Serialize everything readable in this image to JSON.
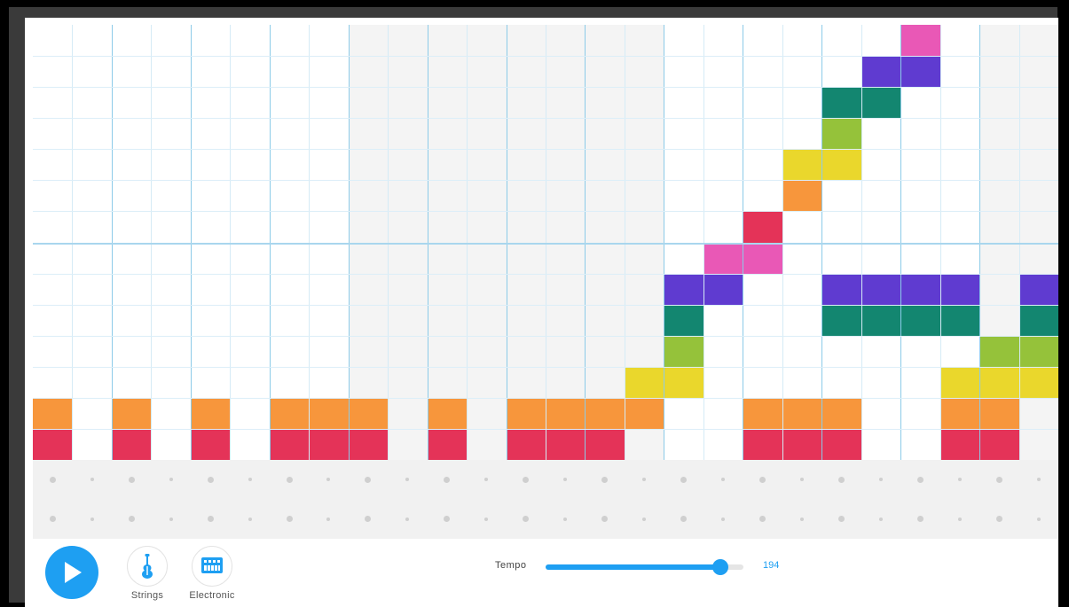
{
  "app": {
    "melody_rows": 14,
    "columns": 26,
    "percussion_rows": 2,
    "notes": [
      {
        "col": 0,
        "row": 12,
        "color": "#f7963c"
      },
      {
        "col": 0,
        "row": 13,
        "color": "#e43358"
      },
      {
        "col": 2,
        "row": 12,
        "color": "#f7963c"
      },
      {
        "col": 2,
        "row": 13,
        "color": "#e43358"
      },
      {
        "col": 4,
        "row": 12,
        "color": "#f7963c"
      },
      {
        "col": 4,
        "row": 13,
        "color": "#e43358"
      },
      {
        "col": 6,
        "row": 12,
        "color": "#f7963c"
      },
      {
        "col": 6,
        "row": 13,
        "color": "#e43358"
      },
      {
        "col": 7,
        "row": 12,
        "color": "#f7963c"
      },
      {
        "col": 7,
        "row": 13,
        "color": "#e43358"
      },
      {
        "col": 8,
        "row": 12,
        "color": "#f7963c"
      },
      {
        "col": 8,
        "row": 13,
        "color": "#e43358"
      },
      {
        "col": 10,
        "row": 12,
        "color": "#f7963c"
      },
      {
        "col": 10,
        "row": 13,
        "color": "#e43358"
      },
      {
        "col": 12,
        "row": 12,
        "color": "#f7963c"
      },
      {
        "col": 12,
        "row": 13,
        "color": "#e43358"
      },
      {
        "col": 13,
        "row": 12,
        "color": "#f7963c"
      },
      {
        "col": 13,
        "row": 13,
        "color": "#e43358"
      },
      {
        "col": 14,
        "row": 12,
        "color": "#f7963c"
      },
      {
        "col": 14,
        "row": 13,
        "color": "#e43358"
      },
      {
        "col": 15,
        "row": 12,
        "color": "#f7963c"
      },
      {
        "col": 15,
        "row": 11,
        "color": "#ead72c"
      },
      {
        "col": 16,
        "row": 11,
        "color": "#ead72c"
      },
      {
        "col": 16,
        "row": 10,
        "color": "#95c23a"
      },
      {
        "col": 16,
        "row": 9,
        "color": "#138670"
      },
      {
        "col": 16,
        "row": 8,
        "color": "#5f3bd0"
      },
      {
        "col": 17,
        "row": 8,
        "color": "#5f3bd0"
      },
      {
        "col": 17,
        "row": 7,
        "color": "#e958b6"
      },
      {
        "col": 18,
        "row": 7,
        "color": "#e958b6"
      },
      {
        "col": 18,
        "row": 6,
        "color": "#e43358"
      },
      {
        "col": 18,
        "row": 12,
        "color": "#f7963c"
      },
      {
        "col": 18,
        "row": 13,
        "color": "#e43358"
      },
      {
        "col": 19,
        "row": 5,
        "color": "#f7963c"
      },
      {
        "col": 19,
        "row": 4,
        "color": "#ead72c"
      },
      {
        "col": 19,
        "row": 12,
        "color": "#f7963c"
      },
      {
        "col": 19,
        "row": 13,
        "color": "#e43358"
      },
      {
        "col": 20,
        "row": 4,
        "color": "#ead72c"
      },
      {
        "col": 20,
        "row": 3,
        "color": "#95c23a"
      },
      {
        "col": 20,
        "row": 2,
        "color": "#138670"
      },
      {
        "col": 20,
        "row": 8,
        "color": "#5f3bd0"
      },
      {
        "col": 20,
        "row": 9,
        "color": "#138670"
      },
      {
        "col": 20,
        "row": 12,
        "color": "#f7963c"
      },
      {
        "col": 20,
        "row": 13,
        "color": "#e43358"
      },
      {
        "col": 21,
        "row": 2,
        "color": "#138670"
      },
      {
        "col": 21,
        "row": 1,
        "color": "#5f3bd0"
      },
      {
        "col": 21,
        "row": 8,
        "color": "#5f3bd0"
      },
      {
        "col": 21,
        "row": 9,
        "color": "#138670"
      },
      {
        "col": 22,
        "row": 1,
        "color": "#5f3bd0"
      },
      {
        "col": 22,
        "row": 0,
        "color": "#e958b6"
      },
      {
        "col": 22,
        "row": 8,
        "color": "#5f3bd0"
      },
      {
        "col": 22,
        "row": 9,
        "color": "#138670"
      },
      {
        "col": 23,
        "row": 8,
        "color": "#5f3bd0"
      },
      {
        "col": 23,
        "row": 9,
        "color": "#138670"
      },
      {
        "col": 23,
        "row": 11,
        "color": "#ead72c"
      },
      {
        "col": 23,
        "row": 12,
        "color": "#f7963c"
      },
      {
        "col": 23,
        "row": 13,
        "color": "#e43358"
      },
      {
        "col": 24,
        "row": 10,
        "color": "#95c23a"
      },
      {
        "col": 24,
        "row": 11,
        "color": "#ead72c"
      },
      {
        "col": 24,
        "row": 12,
        "color": "#f7963c"
      },
      {
        "col": 24,
        "row": 13,
        "color": "#e43358"
      },
      {
        "col": 25,
        "row": 8,
        "color": "#5f3bd0"
      },
      {
        "col": 25,
        "row": 9,
        "color": "#138670"
      },
      {
        "col": 25,
        "row": 10,
        "color": "#95c23a"
      },
      {
        "col": 25,
        "row": 11,
        "color": "#ead72c"
      }
    ]
  },
  "toolbar": {
    "play_icon": "play-icon",
    "instrument_1": {
      "label": "Strings",
      "icon": "violin-icon"
    },
    "instrument_2": {
      "label": "Electronic",
      "icon": "keyboard-icon"
    },
    "tempo": {
      "label": "Tempo",
      "value": "194",
      "fraction": 0.883
    }
  },
  "colors": {
    "accent": "#1e9ff2"
  }
}
